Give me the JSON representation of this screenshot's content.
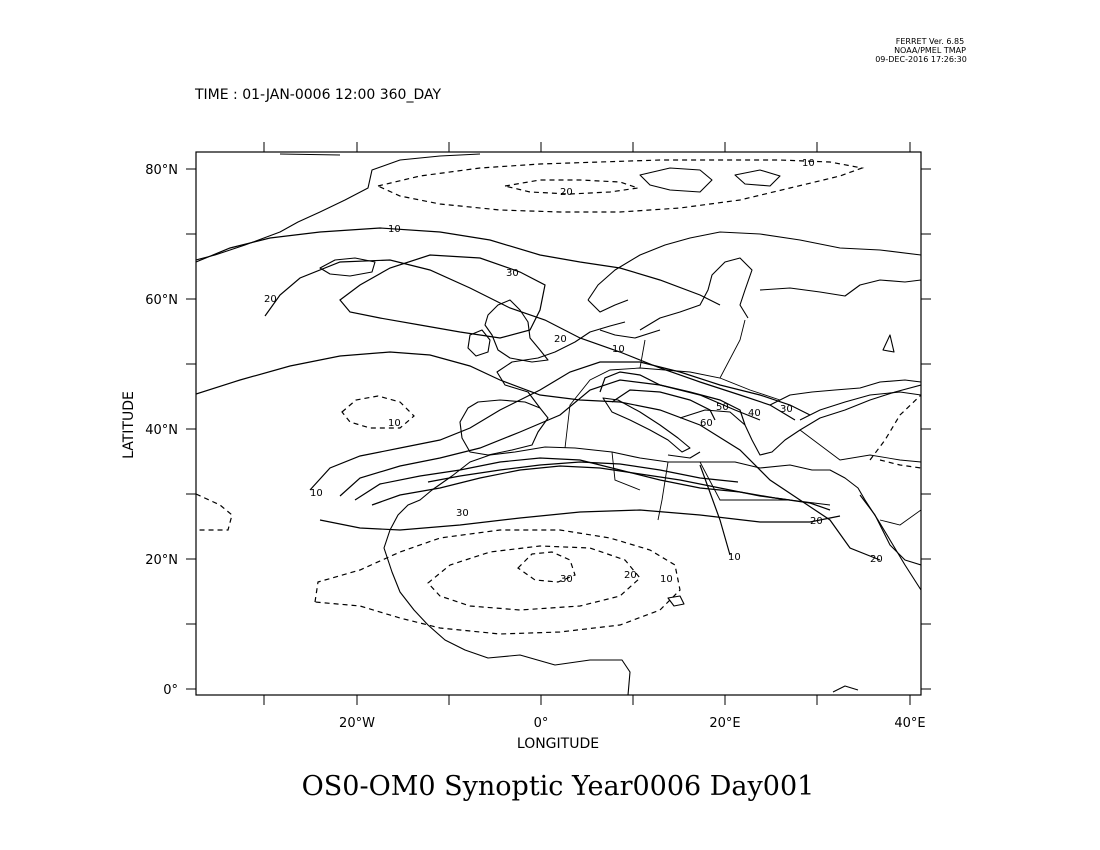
{
  "header": {
    "software": "FERRET Ver. 6.85",
    "org": "NOAA/PMEL TMAP",
    "timestamp": "09-DEC-2016 17:26:30",
    "time_label": "TIME : 01-JAN-0006 12:00 360_DAY"
  },
  "axes": {
    "xlabel": "LONGITUDE",
    "ylabel": "LATITUDE",
    "x_ticks": [
      {
        "value": -20,
        "label": "20°W"
      },
      {
        "value": 0,
        "label": "0°"
      },
      {
        "value": 20,
        "label": "20°E"
      },
      {
        "value": 40,
        "label": "40°E"
      }
    ],
    "y_ticks": [
      {
        "value": 0,
        "label": "0°"
      },
      {
        "value": 20,
        "label": "20°N"
      },
      {
        "value": 40,
        "label": "40°N"
      },
      {
        "value": 60,
        "label": "60°N"
      },
      {
        "value": 80,
        "label": "80°N"
      }
    ],
    "xlim": [
      -37,
      41
    ],
    "ylim": [
      -1,
      83
    ]
  },
  "contour_labels": [
    "10",
    "20",
    "10",
    "30",
    "20",
    "20",
    "10",
    "10",
    "10",
    "30",
    "50",
    "40",
    "30",
    "60",
    "20",
    "10",
    "20",
    "20",
    "10",
    "30"
  ],
  "footer": {
    "title": "OS0-OM0 Synoptic Year0006 Day001"
  }
}
